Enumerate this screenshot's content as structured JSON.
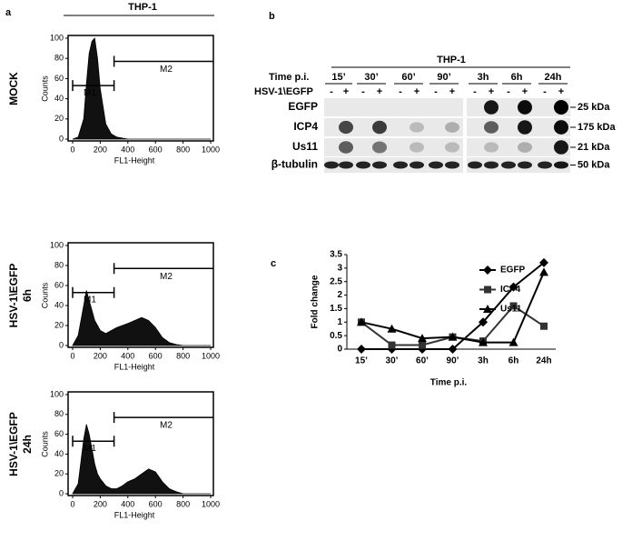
{
  "panel_a": {
    "label": "a",
    "title": "THP-1",
    "histograms": [
      {
        "row_label": [
          "MOCK"
        ],
        "y_label": "Counts",
        "x_label": "FL1-Height",
        "markers": [
          "M1",
          "M2"
        ],
        "ylim": [
          0,
          100
        ],
        "yticks": [
          0,
          20,
          40,
          60,
          80,
          100
        ],
        "xlim": [
          0,
          1000
        ],
        "xticks": [
          0,
          200,
          400,
          600,
          800,
          1000
        ],
        "x": [
          0,
          40,
          80,
          100,
          120,
          140,
          160,
          180,
          200,
          240,
          280,
          320,
          360,
          400,
          450,
          500,
          550,
          600,
          650,
          700,
          750,
          800,
          900,
          1000
        ],
        "counts": [
          0,
          2,
          20,
          55,
          85,
          97,
          100,
          80,
          50,
          15,
          5,
          2,
          1,
          0,
          0,
          0,
          0,
          0,
          0,
          0,
          0,
          0,
          0,
          0
        ]
      },
      {
        "row_label": [
          "HSV-1\\EGFP",
          "6h"
        ],
        "y_label": "Counts",
        "x_label": "FL1-Height",
        "markers": [
          "M1",
          "M2"
        ],
        "ylim": [
          0,
          100
        ],
        "yticks": [
          0,
          20,
          40,
          60,
          80,
          100
        ],
        "xlim": [
          0,
          1000
        ],
        "xticks": [
          0,
          200,
          400,
          600,
          800,
          1000
        ],
        "x": [
          0,
          40,
          80,
          100,
          120,
          140,
          160,
          180,
          200,
          240,
          280,
          320,
          360,
          400,
          450,
          500,
          550,
          600,
          650,
          700,
          750,
          800,
          900,
          1000
        ],
        "counts": [
          0,
          10,
          40,
          55,
          45,
          35,
          25,
          20,
          15,
          12,
          15,
          18,
          20,
          22,
          25,
          28,
          25,
          18,
          8,
          3,
          1,
          0,
          0,
          0
        ]
      },
      {
        "row_label": [
          "HSV-1\\EGFP",
          "24h"
        ],
        "y_label": "Counts",
        "x_label": "FL1-Height",
        "markers": [
          "M1",
          "M2"
        ],
        "ylim": [
          0,
          100
        ],
        "yticks": [
          0,
          20,
          40,
          60,
          80,
          100
        ],
        "xlim": [
          0,
          1000
        ],
        "xticks": [
          0,
          200,
          400,
          600,
          800,
          1000
        ],
        "x": [
          0,
          40,
          80,
          100,
          120,
          140,
          160,
          180,
          200,
          240,
          280,
          320,
          360,
          400,
          450,
          500,
          550,
          600,
          650,
          700,
          750,
          800,
          900,
          1000
        ],
        "counts": [
          0,
          10,
          55,
          70,
          60,
          45,
          30,
          20,
          15,
          8,
          5,
          5,
          8,
          12,
          15,
          20,
          25,
          22,
          12,
          5,
          2,
          0,
          0,
          0
        ]
      }
    ]
  },
  "panel_b": {
    "label": "b",
    "title": "THP-1",
    "time_label": "Time p.i.",
    "times": [
      "15’",
      "30’",
      "60’",
      "90’",
      "3h",
      "6h",
      "24h"
    ],
    "treatment_label": "HSV-1\\EGFP",
    "signs": [
      "-",
      "+"
    ],
    "rows": [
      {
        "name": "EGFP",
        "size": "25 kDa"
      },
      {
        "name": "ICP4",
        "size": "175 kDa"
      },
      {
        "name": "Us11",
        "size": "21 kDa"
      },
      {
        "name": "β-tubulin",
        "size": "50 kDa"
      }
    ]
  },
  "chart_data": {
    "type": "line",
    "panel_label": "c",
    "y_label": "Fold change",
    "x_label": "Time p.i.",
    "categories": [
      "15’",
      "30’",
      "60’",
      "90’",
      "3h",
      "6h",
      "24h"
    ],
    "ylim": [
      0,
      3.5
    ],
    "yticks": [
      0,
      0.5,
      1,
      1.5,
      2,
      2.5,
      3,
      3.5
    ],
    "series": [
      {
        "name": "EGFP",
        "color": "#000000",
        "marker": "diamond",
        "values": [
          0,
          0,
          0,
          0,
          1.0,
          2.3,
          3.2
        ]
      },
      {
        "name": "ICP4",
        "color": "#333333",
        "marker": "square",
        "values": [
          1.0,
          0.15,
          0.15,
          0.45,
          0.3,
          1.6,
          0.85
        ]
      },
      {
        "name": "Us11",
        "color": "#000000",
        "marker": "triangle",
        "values": [
          1.0,
          0.75,
          0.4,
          0.45,
          0.25,
          0.25,
          2.85
        ]
      }
    ]
  }
}
